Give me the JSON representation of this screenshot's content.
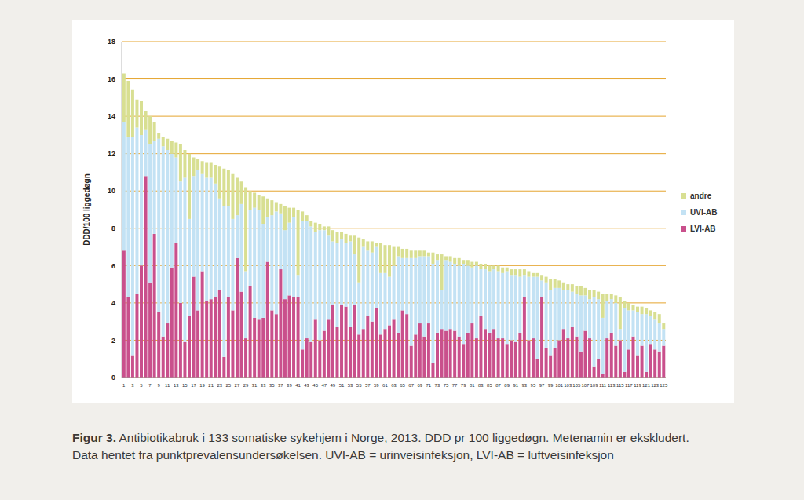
{
  "chart_data": {
    "type": "bar",
    "title": "Figur 3.",
    "subtitle": "Antibiotikabruk i 133 somatiske sykehjem i Norge, 2013. DDD pr 100 liggedøgn. Metenamin er ekskludert. Data hentet fra punktprevalensundersøkelsen. UVI-AB = urinveisinfeksjon, LVI-AB = luftveisinfeksjon",
    "y_label": "DDD/100 liggedøgn",
    "categories": [
      "1",
      null,
      "3",
      null,
      "5",
      null,
      "7",
      null,
      "9",
      null,
      "11",
      null,
      "13",
      null,
      "15",
      null,
      "17",
      null,
      "19",
      null,
      "21",
      null,
      "23",
      null,
      "25",
      null,
      "27",
      null,
      "29",
      null,
      "31",
      null,
      "33",
      null,
      "35",
      null,
      "37",
      null,
      "39",
      null,
      "41",
      null,
      "43",
      null,
      "45",
      null,
      "47",
      null,
      "49",
      null,
      "51",
      null,
      "53",
      null,
      "55",
      null,
      "57",
      null,
      "59",
      null,
      "61",
      null,
      "63",
      null,
      "65",
      null,
      "67",
      null,
      "69",
      null,
      "71",
      null,
      "73",
      null,
      "75",
      null,
      "77",
      null,
      "79",
      null,
      "81",
      null,
      "83",
      null,
      "85",
      null,
      "87",
      null,
      "89",
      null,
      "91",
      null,
      "93",
      null,
      "95",
      null,
      "97",
      null,
      "99",
      null,
      "101",
      null,
      "103",
      null,
      "105",
      null,
      "107",
      null,
      "109",
      null,
      "111",
      null,
      "113",
      null,
      "115",
      null,
      "117",
      null,
      "119",
      null,
      "121",
      null,
      "123",
      null,
      "125"
    ],
    "series": [
      {
        "name": "LVI-AB",
        "color": "#c9508c",
        "values": [
          6.8,
          4.3,
          1.2,
          4.5,
          6.0,
          10.8,
          5.1,
          7.7,
          3.5,
          2.2,
          2.9,
          5.9,
          7.2,
          4.0,
          1.9,
          3.3,
          5.4,
          3.6,
          5.7,
          4.1,
          4.2,
          4.3,
          4.7,
          1.1,
          4.3,
          3.6,
          6.4,
          4.6,
          2.1,
          4.9,
          3.2,
          3.1,
          3.2,
          6.2,
          3.6,
          3.4,
          5.8,
          4.2,
          4.4,
          4.3,
          4.3,
          1.5,
          2.1,
          1.9,
          3.1,
          2.0,
          2.5,
          3.1,
          3.9,
          2.7,
          3.9,
          3.8,
          2.7,
          3.9,
          2.3,
          2.6,
          3.3,
          3.0,
          3.7,
          2.3,
          2.6,
          2.8,
          3.1,
          2.4,
          3.6,
          3.4,
          1.7,
          2.3,
          2.9,
          2.2,
          2.9,
          0.8,
          2.4,
          2.6,
          2.5,
          2.6,
          2.5,
          2.2,
          1.8,
          2.4,
          2.9,
          2.1,
          3.3,
          2.6,
          2.4,
          2.6,
          2.1,
          2.1,
          1.8,
          2.0,
          1.9,
          2.4,
          4.3,
          2.0,
          2.1,
          1.0,
          4.3,
          1.6,
          1.2,
          1.6,
          2.0,
          2.6,
          2.1,
          2.7,
          2.2,
          1.4,
          2.5,
          2.1,
          0.6,
          1.0,
          0.2,
          2.1,
          2.4,
          1.7,
          2.0,
          0.3,
          1.5,
          2.2,
          1.2,
          1.7,
          0.3,
          1.8,
          1.5,
          1.4,
          1.7
        ]
      },
      {
        "name": "UVI-AB",
        "color": "#c3e2f4",
        "values": [
          6.9,
          8.6,
          11.7,
          8.9,
          7.0,
          2.5,
          7.4,
          5.0,
          9.3,
          10.2,
          9.3,
          6.1,
          4.6,
          6.5,
          8.8,
          5.2,
          5.4,
          7.5,
          5.2,
          6.6,
          6.5,
          6.1,
          4.9,
          8.1,
          4.9,
          4.9,
          2.3,
          4.7,
          3.6,
          4.1,
          5.9,
          5.9,
          5.0,
          2.4,
          5.1,
          5.5,
          3.0,
          3.7,
          3.9,
          4.3,
          1.2,
          6.9,
          6.3,
          6.2,
          4.7,
          5.9,
          5.4,
          4.5,
          3.4,
          4.5,
          3.5,
          3.4,
          4.6,
          2.7,
          2.8,
          4.4,
          3.5,
          3.7,
          3.3,
          3.3,
          3.0,
          2.6,
          2.9,
          4.1,
          2.8,
          3.0,
          4.7,
          4.1,
          3.6,
          4.3,
          3.6,
          5.3,
          3.9,
          2.1,
          3.8,
          3.6,
          3.6,
          3.8,
          4.3,
          3.6,
          3.0,
          3.9,
          2.5,
          3.2,
          3.3,
          3.2,
          3.6,
          3.5,
          3.9,
          3.5,
          3.6,
          3.0,
          1.2,
          3.4,
          3.3,
          4.4,
          0.9,
          3.5,
          3.5,
          3.2,
          2.8,
          2.1,
          2.6,
          1.9,
          2.3,
          3.0,
          1.9,
          2.1,
          3.7,
          3.2,
          3.0,
          2.0,
          1.8,
          2.3,
          0.6,
          3.4,
          2.1,
          1.4,
          2.3,
          1.7,
          3.1,
          1.5,
          1.6,
          1.5,
          0.9
        ]
      },
      {
        "name": "andre",
        "color": "#d8df92",
        "values": [
          2.6,
          3.0,
          2.5,
          1.5,
          1.8,
          1.0,
          1.5,
          1.0,
          0.3,
          0.5,
          0.6,
          0.7,
          0.8,
          2.0,
          1.5,
          3.5,
          1.0,
          0.6,
          0.7,
          0.8,
          0.8,
          1.0,
          1.7,
          2.0,
          1.9,
          2.4,
          2.0,
          1.2,
          4.5,
          1.0,
          0.8,
          0.8,
          1.5,
          1.0,
          0.8,
          0.5,
          0.5,
          1.3,
          0.8,
          0.5,
          3.5,
          0.5,
          0.3,
          0.3,
          0.5,
          0.3,
          0.2,
          0.5,
          0.6,
          0.6,
          0.4,
          0.5,
          0.3,
          1.0,
          2.4,
          0.4,
          0.5,
          0.6,
          0.2,
          1.6,
          1.5,
          1.7,
          1.0,
          0.5,
          0.5,
          0.5,
          0.4,
          0.4,
          0.3,
          0.3,
          0.2,
          0.6,
          0.3,
          1.9,
          0.2,
          0.3,
          0.3,
          0.4,
          0.2,
          0.3,
          0.3,
          0.2,
          0.3,
          0.3,
          0.3,
          0.2,
          0.3,
          0.3,
          0.2,
          0.3,
          0.3,
          0.4,
          0.3,
          0.3,
          0.2,
          0.2,
          0.3,
          0.3,
          0.6,
          0.5,
          0.4,
          0.4,
          0.3,
          0.4,
          0.4,
          0.5,
          0.4,
          0.5,
          0.4,
          0.4,
          1.3,
          0.4,
          0.3,
          0.4,
          1.7,
          0.4,
          0.4,
          0.3,
          0.3,
          0.4,
          0.3,
          0.3,
          0.4,
          0.5,
          0.3
        ]
      }
    ],
    "ylim": [
      0,
      18
    ],
    "yticks": [
      0,
      2,
      4,
      6,
      8,
      10,
      12,
      14,
      16,
      18
    ],
    "grid": true,
    "stacked": true,
    "legend": "right"
  }
}
